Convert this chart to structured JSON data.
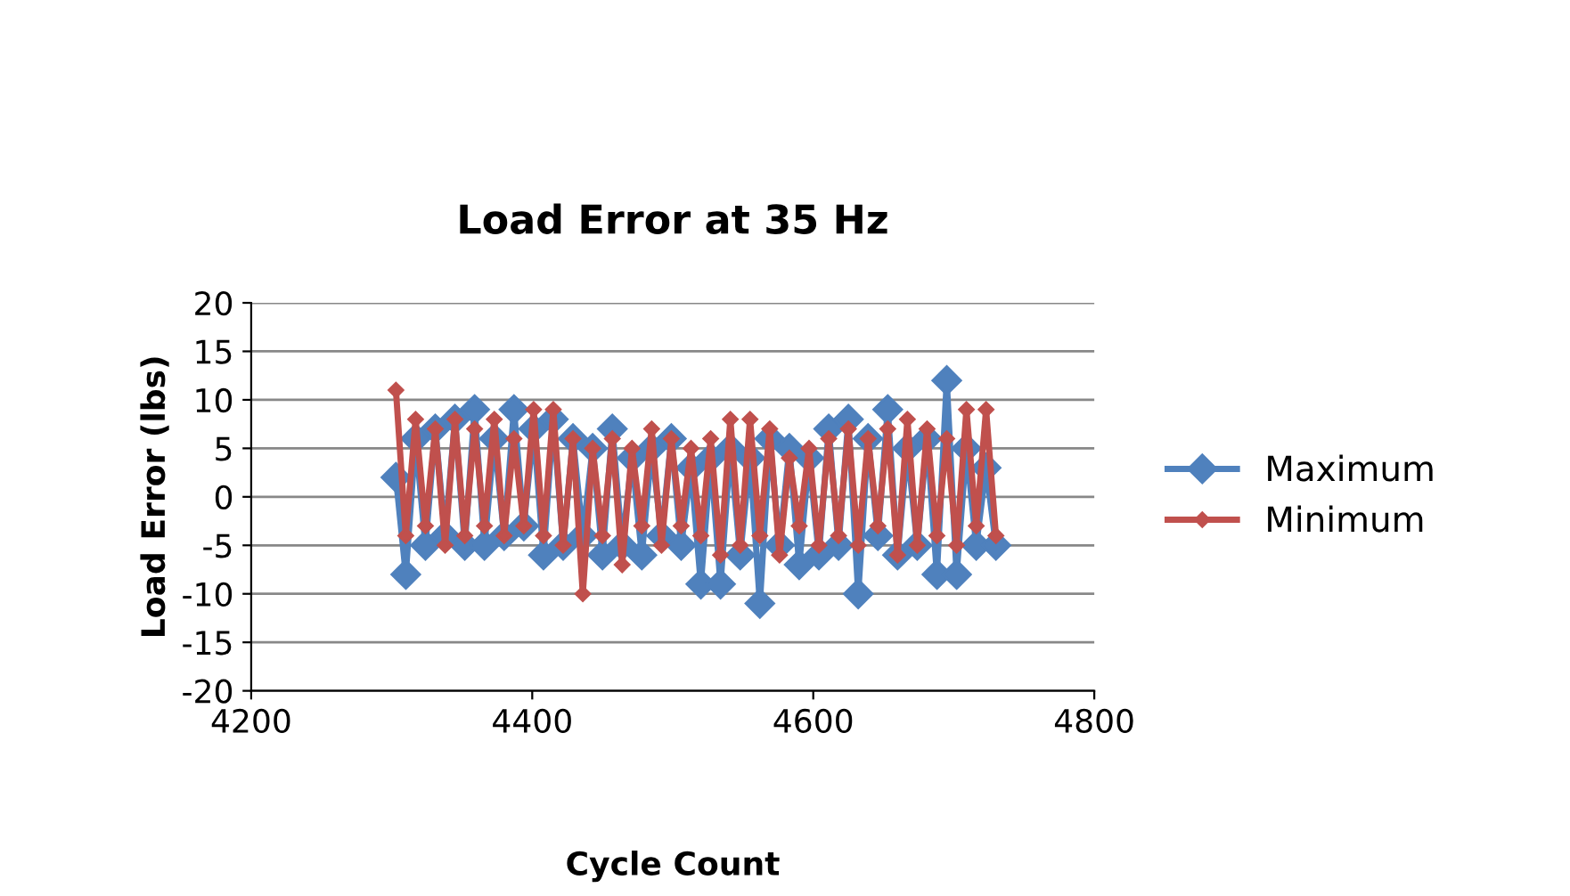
{
  "chart_data": {
    "type": "line",
    "title": "Load Error at 35 Hz",
    "xlabel": "Cycle Count",
    "ylabel": "Load Error (lbs)",
    "x": [
      4303,
      4310,
      4317,
      4324,
      4331,
      4338,
      4345,
      4352,
      4359,
      4366,
      4373,
      4380,
      4387,
      4394,
      4401,
      4408,
      4415,
      4422,
      4429,
      4436,
      4443,
      4450,
      4457,
      4464,
      4471,
      4478,
      4485,
      4492,
      4499,
      4506,
      4513,
      4520,
      4527,
      4534,
      4541,
      4548,
      4555,
      4562,
      4569,
      4576,
      4583,
      4590,
      4597,
      4604,
      4611,
      4618,
      4625,
      4632,
      4639,
      4646,
      4653,
      4660,
      4667,
      4674,
      4681,
      4688,
      4695,
      4702,
      4709,
      4716,
      4723,
      4730
    ],
    "series": [
      {
        "name": "Maximum",
        "color": "#4f81bd",
        "marker": "diamond",
        "values": [
          2,
          -8,
          6,
          -5,
          7,
          -4,
          8,
          -5,
          9,
          -5,
          6,
          -4,
          9,
          -3,
          7,
          -6,
          8,
          -5,
          6,
          -4,
          5,
          -6,
          7,
          -5,
          4,
          -6,
          5,
          -4,
          6,
          -5,
          3,
          -9,
          4,
          -9,
          5,
          -6,
          4,
          -11,
          6,
          -5,
          5,
          -7,
          4,
          -6,
          7,
          -5,
          8,
          -10,
          6,
          -4,
          9,
          -6,
          5,
          -5,
          6,
          -8,
          12,
          -8,
          5,
          -5,
          3,
          -5
        ]
      },
      {
        "name": "Minimum",
        "color": "#c0504d",
        "marker": "diamond",
        "values": [
          11,
          -4,
          8,
          -3,
          7,
          -5,
          8,
          -4,
          7,
          -3,
          8,
          -4,
          6,
          -3,
          9,
          -4,
          9,
          -5,
          6,
          -10,
          5,
          -4,
          6,
          -7,
          5,
          -3,
          7,
          -5,
          6,
          -3,
          5,
          -4,
          6,
          -6,
          8,
          -5,
          8,
          -4,
          7,
          -6,
          4,
          -3,
          5,
          -5,
          6,
          -4,
          7,
          -5,
          6,
          -3,
          7,
          -6,
          8,
          -5,
          7,
          -4,
          6,
          -5,
          9,
          -3,
          9,
          -4
        ]
      }
    ],
    "xlim": [
      4200,
      4800
    ],
    "xticks": [
      4200,
      4400,
      4600,
      4800
    ],
    "ylim": [
      -20,
      20
    ],
    "yticks": [
      -20,
      -15,
      -10,
      -5,
      0,
      5,
      10,
      15,
      20
    ],
    "grid": "y",
    "legend": "right",
    "line_style": "solid"
  }
}
